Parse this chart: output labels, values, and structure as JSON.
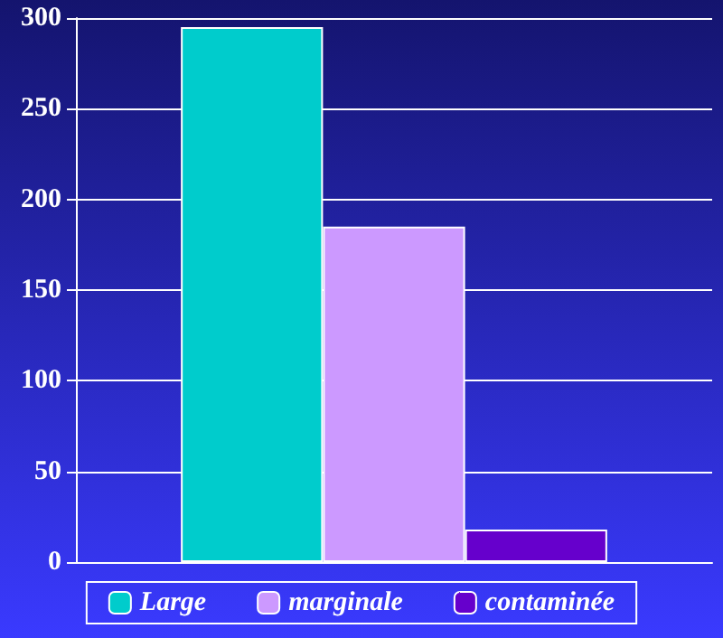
{
  "chart_data": {
    "type": "bar",
    "categories": [
      null
    ],
    "series": [
      {
        "name": "Large",
        "color": "#00cccc",
        "values": [
          295
        ]
      },
      {
        "name": "marginale",
        "color": "#cc99ff",
        "values": [
          185
        ]
      },
      {
        "name": "contaminée",
        "color": "#6600cc",
        "values": [
          18
        ]
      }
    ],
    "ylim": [
      0,
      300
    ],
    "yticks": [
      0,
      50,
      100,
      150,
      200,
      250,
      300
    ],
    "grid": "y",
    "legend": "bottom"
  }
}
